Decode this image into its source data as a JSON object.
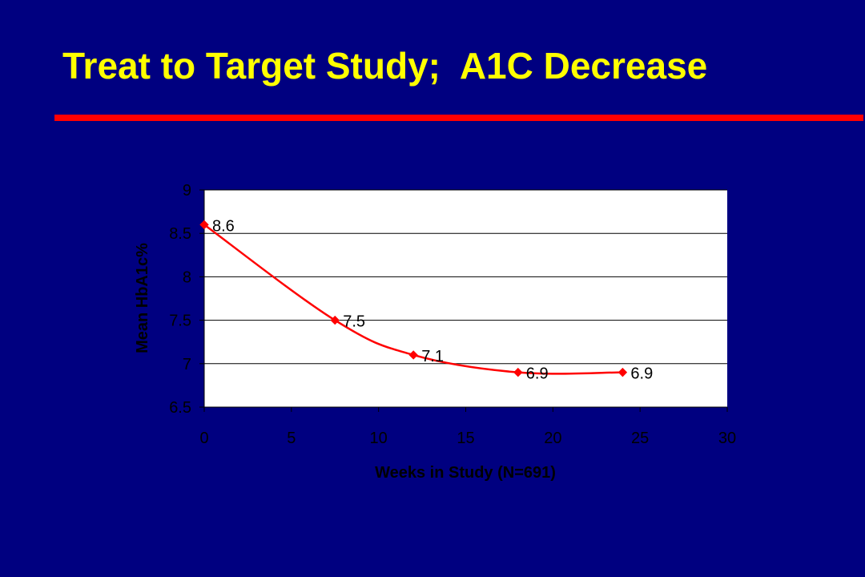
{
  "slide": {
    "title": "Treat to Target Study;  A1C Decrease",
    "background_color": "#000080",
    "title_color": "#FFFF00",
    "rule_color": "#FF0000"
  },
  "chart_data": {
    "type": "line",
    "title": "",
    "xlabel": "Weeks in Study (N=691)",
    "ylabel": "Mean HbA1c%",
    "xlim": [
      0,
      30
    ],
    "ylim": [
      6.5,
      9
    ],
    "x_ticks": [
      "0",
      "5",
      "10",
      "15",
      "20",
      "25",
      "30"
    ],
    "y_ticks": [
      "6.5",
      "7",
      "7.5",
      "8",
      "8.5",
      "9"
    ],
    "grid": "horizontal",
    "series": [
      {
        "color": "#FF0000",
        "marker": "diamond",
        "points": [
          {
            "x": 0,
            "y": 8.6,
            "label": "8.6"
          },
          {
            "x": 7.5,
            "y": 7.5,
            "label": "7.5"
          },
          {
            "x": 12,
            "y": 7.1,
            "label": "7.1"
          },
          {
            "x": 18,
            "y": 6.9,
            "label": "6.9"
          },
          {
            "x": 24,
            "y": 6.9,
            "label": "6.9"
          }
        ]
      }
    ]
  }
}
